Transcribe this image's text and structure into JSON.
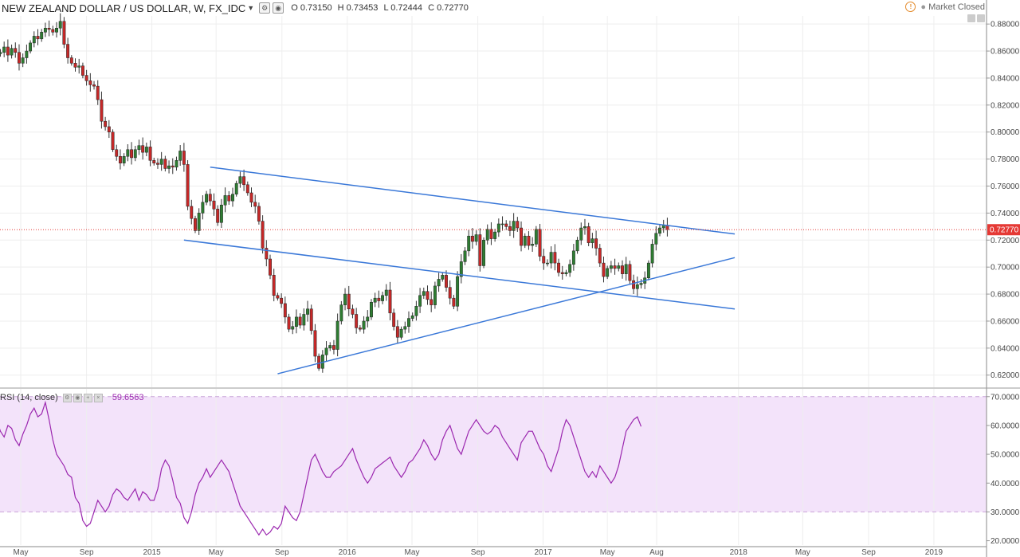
{
  "header": {
    "symbol_title": "NEW ZEALAND DOLLAR / US DOLLAR, W, FX_IDC",
    "open": "O 0.73150",
    "high": "H 0.73453",
    "low": "L 0.72444",
    "close": "C 0.72770",
    "market_status": "Market Closed"
  },
  "rsi_header": {
    "label": "RSI (14, close)",
    "value": "59.6563"
  },
  "colors": {
    "up": "#2e7d32",
    "down": "#c62828",
    "trendline": "#3a78d8",
    "rsi_line": "#9b27af",
    "rsi_band": "#f3e3fa",
    "price_line": "#e53935"
  },
  "chart_data": [
    {
      "type": "candlestick",
      "timeframe": "Weekly",
      "y_axis_ticks": [
        "0.62000",
        "0.64000",
        "0.66000",
        "0.68000",
        "0.70000",
        "0.72000",
        "0.74000",
        "0.76000",
        "0.78000",
        "0.80000",
        "0.82000",
        "0.84000",
        "0.86000",
        "0.88000"
      ],
      "ylim": [
        0.611,
        0.886
      ],
      "x_axis_labels": [
        "May",
        "Sep",
        "2015",
        "May",
        "Sep",
        "2016",
        "May",
        "Sep",
        "2017",
        "May",
        "Aug",
        "2018",
        "May",
        "Sep",
        "2019"
      ],
      "x_axis_dates": [
        "2014-05-01",
        "2014-09-01",
        "2015-01-01",
        "2015-05-01",
        "2015-09-01",
        "2016-01-01",
        "2016-05-01",
        "2016-09-01",
        "2017-01-01",
        "2017-05-01",
        "2017-08-01",
        "2018-01-01",
        "2018-05-01",
        "2018-09-01",
        "2019-01-01"
      ],
      "last_price_label": "0.72770",
      "last_price": 0.7277,
      "close_series": {
        "start": "2014-03-03",
        "interval": "1 week",
        "closes": [
          0.862,
          0.866,
          0.858,
          0.859,
          0.863,
          0.857,
          0.862,
          0.859,
          0.851,
          0.855,
          0.86,
          0.866,
          0.871,
          0.869,
          0.874,
          0.877,
          0.876,
          0.874,
          0.877,
          0.882,
          0.865,
          0.855,
          0.851,
          0.848,
          0.849,
          0.842,
          0.838,
          0.835,
          0.834,
          0.824,
          0.808,
          0.804,
          0.8,
          0.787,
          0.782,
          0.777,
          0.782,
          0.787,
          0.781,
          0.787,
          0.79,
          0.785,
          0.789,
          0.779,
          0.777,
          0.776,
          0.78,
          0.773,
          0.775,
          0.774,
          0.779,
          0.786,
          0.776,
          0.745,
          0.736,
          0.727,
          0.74,
          0.748,
          0.754,
          0.749,
          0.743,
          0.733,
          0.746,
          0.753,
          0.749,
          0.754,
          0.762,
          0.767,
          0.761,
          0.755,
          0.748,
          0.745,
          0.734,
          0.714,
          0.706,
          0.694,
          0.679,
          0.677,
          0.673,
          0.663,
          0.654,
          0.656,
          0.663,
          0.657,
          0.665,
          0.669,
          0.653,
          0.634,
          0.625,
          0.635,
          0.64,
          0.642,
          0.639,
          0.66,
          0.672,
          0.68,
          0.669,
          0.665,
          0.655,
          0.654,
          0.66,
          0.663,
          0.674,
          0.677,
          0.675,
          0.679,
          0.683,
          0.666,
          0.656,
          0.648,
          0.654,
          0.656,
          0.662,
          0.664,
          0.671,
          0.679,
          0.682,
          0.676,
          0.672,
          0.686,
          0.691,
          0.694,
          0.685,
          0.677,
          0.671,
          0.693,
          0.704,
          0.712,
          0.723,
          0.719,
          0.724,
          0.701,
          0.72,
          0.728,
          0.721,
          0.726,
          0.732,
          0.732,
          0.73,
          0.727,
          0.734,
          0.729,
          0.716,
          0.723,
          0.716,
          0.717,
          0.728,
          0.708,
          0.703,
          0.703,
          0.711,
          0.703,
          0.696,
          0.695,
          0.696,
          0.702,
          0.712,
          0.72,
          0.729,
          0.73,
          0.718,
          0.721,
          0.714,
          0.703,
          0.693,
          0.699,
          0.701,
          0.699,
          0.701,
          0.695,
          0.702,
          0.69,
          0.684,
          0.687,
          0.688,
          0.692,
          0.703,
          0.717,
          0.725,
          0.729,
          0.731,
          0.7277
        ]
      },
      "trendlines": [
        {
          "from": {
            "date": "2015-04-20",
            "price": 0.774
          },
          "to": {
            "date": "2017-12-25",
            "price": 0.7245
          }
        },
        {
          "from": {
            "date": "2015-03-02",
            "price": 0.72
          },
          "to": {
            "date": "2017-12-25",
            "price": 0.669
          }
        },
        {
          "from": {
            "date": "2015-08-24",
            "price": 0.621
          },
          "to": {
            "date": "2017-12-25",
            "price": 0.707
          }
        }
      ]
    },
    {
      "type": "line",
      "title": "RSI (14, close)",
      "y_axis_ticks": [
        "20.0000",
        "30.0000",
        "40.0000",
        "50.0000",
        "60.0000",
        "70.0000"
      ],
      "ylim": [
        18.5,
        72.7
      ],
      "bands": [
        30,
        70
      ],
      "last_value": 59.6563,
      "series": [
        {
          "start": "2014-03-03",
          "interval": "1 week",
          "values": [
            62,
            60,
            62,
            58,
            56,
            60,
            59,
            55,
            53,
            57,
            60,
            64,
            66,
            63,
            64,
            68,
            62,
            55,
            50,
            48,
            46,
            43,
            42,
            35,
            33,
            27,
            25,
            26,
            30,
            34,
            32,
            30,
            32,
            36,
            38,
            37,
            35,
            34,
            36,
            38,
            34,
            37,
            36,
            34,
            34,
            38,
            45,
            48,
            46,
            41,
            35,
            33,
            28,
            26,
            30,
            36,
            40,
            42,
            45,
            42,
            44,
            46,
            48,
            46,
            44,
            40,
            36,
            32,
            30,
            28,
            26,
            24,
            22,
            24,
            22,
            23,
            25,
            24,
            26,
            32,
            30,
            28,
            27,
            30,
            36,
            42,
            48,
            50,
            47,
            44,
            42,
            42,
            44,
            45,
            46,
            48,
            50,
            52,
            48,
            45,
            42,
            40,
            42,
            45,
            46,
            47,
            48,
            49,
            46,
            44,
            42,
            44,
            47,
            48,
            50,
            52,
            55,
            53,
            50,
            48,
            50,
            55,
            58,
            60,
            56,
            52,
            50,
            54,
            58,
            60,
            62,
            60,
            58,
            57,
            58,
            60,
            59,
            56,
            54,
            52,
            50,
            48,
            54,
            56,
            58,
            58,
            55,
            52,
            50,
            46,
            44,
            48,
            52,
            58,
            62,
            60,
            56,
            52,
            48,
            44,
            42,
            44,
            42,
            46,
            44,
            42,
            40,
            42,
            46,
            52,
            58,
            60,
            62,
            63,
            59.6563
          ]
        }
      ]
    }
  ]
}
